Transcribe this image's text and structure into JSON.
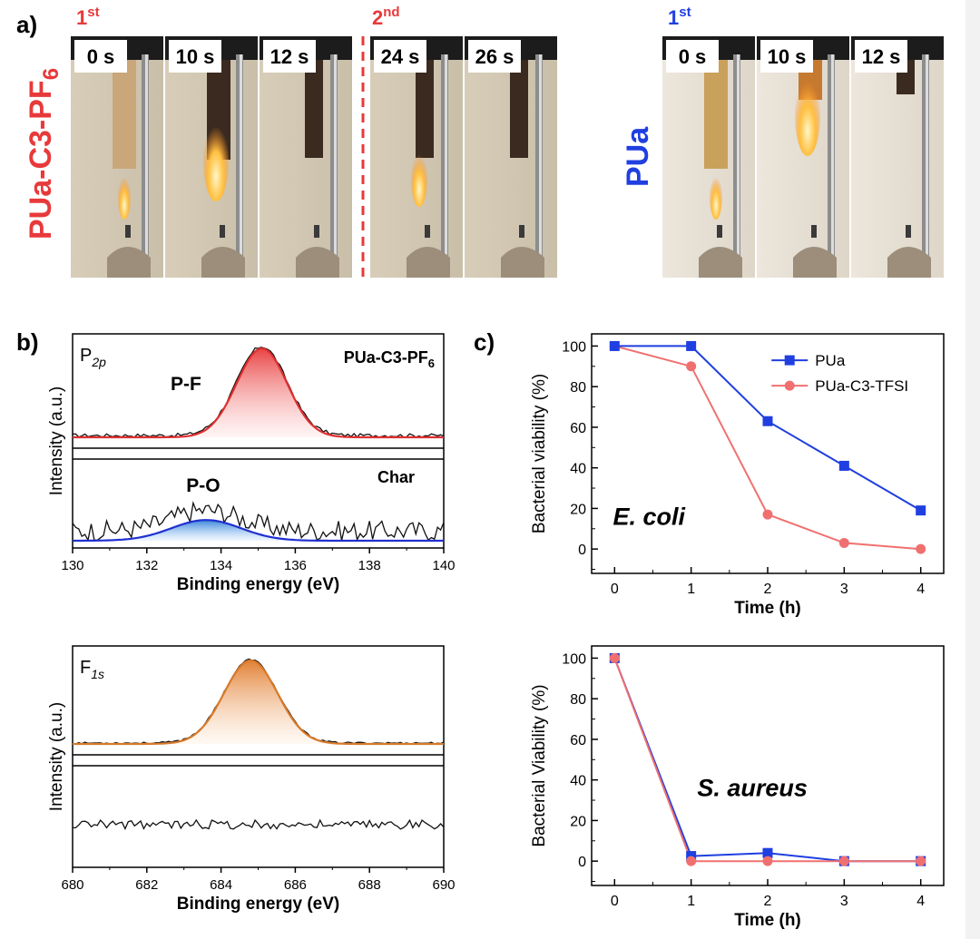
{
  "panel_labels": {
    "a": "a)",
    "b": "b)",
    "c": "c)"
  },
  "panel_a": {
    "sample_left": "PUa-C3-PF",
    "sample_left_sub": "6",
    "sample_right": "PUa",
    "ignition_1st": "1",
    "ignition_1st_sup": "st",
    "ignition_2nd": "2",
    "ignition_2nd_sup": "nd",
    "ignition_right": "1",
    "ignition_right_sup": "st",
    "left_frames": [
      "0 s",
      "10 s",
      "12 s",
      "24 s",
      "26 s"
    ],
    "right_frames": [
      "0 s",
      "10 s",
      "12 s"
    ],
    "colors": {
      "red": "#e8393a",
      "blue": "#1f3fe0"
    }
  },
  "chart_data": [
    {
      "type": "line",
      "id": "xps_p2p",
      "title": "P2p",
      "xlabel": "Binding energy (eV)",
      "ylabel": "Intensity (a.u.)",
      "xlim": [
        130,
        140
      ],
      "xticks": [
        "130",
        "132",
        "134",
        "136",
        "138",
        "140"
      ],
      "subpanels": [
        {
          "label": "PUa-C3-PF6",
          "peak": "P-F",
          "peak_center": 135.1,
          "peak_fwhm": 1.6,
          "fill": "#e83a3a"
        },
        {
          "label": "Char",
          "peak": "P-O",
          "peak_center": 133.6,
          "peak_fwhm": 2.2,
          "fill": "#3f8fe0"
        }
      ],
      "text": {
        "title_main": "P",
        "title_sub": "2p",
        "top_label": "PUa-C3-PF",
        "top_label_sub": "6",
        "top_peak": "P-F",
        "bottom_label": "Char",
        "bottom_peak": "P-O"
      }
    },
    {
      "type": "line",
      "id": "xps_f1s",
      "title": "F1s",
      "xlabel": "Binding energy (eV)",
      "ylabel": "Intensity (a.u.)",
      "xlim": [
        680,
        690
      ],
      "xticks": [
        "680",
        "682",
        "684",
        "686",
        "688",
        "690"
      ],
      "subpanels": [
        {
          "peak_center": 684.8,
          "peak_fwhm": 1.7,
          "fill": "#e58a3a"
        },
        {
          "peak_center": null
        }
      ],
      "text": {
        "title_main": "F",
        "title_sub": "1s"
      }
    },
    {
      "type": "line",
      "id": "ecoli",
      "xlabel": "Time (h)",
      "ylabel": "Bacterial viability (%)",
      "annotation": "E. coli",
      "x": [
        0,
        1,
        2,
        3,
        4
      ],
      "xlim": [
        -0.3,
        4.3
      ],
      "ylim": [
        -12,
        106
      ],
      "yticks": [
        0,
        20,
        40,
        60,
        80,
        100
      ],
      "series": [
        {
          "name": "PUa",
          "values": [
            100,
            100,
            63,
            41,
            19
          ],
          "color": "#1f3fe0",
          "marker": "square"
        },
        {
          "name": "PUa-C3-TFSI",
          "values": [
            100,
            90,
            17,
            3,
            0
          ],
          "color": "#f07070",
          "marker": "circle"
        }
      ],
      "legend": "top-right"
    },
    {
      "type": "line",
      "id": "saureus",
      "xlabel": "Time (h)",
      "ylabel": "Bacterial Viability (%)",
      "annotation": "S. aureus",
      "x": [
        0,
        1,
        2,
        3,
        4
      ],
      "xlim": [
        -0.3,
        4.3
      ],
      "ylim": [
        -12,
        106
      ],
      "yticks": [
        0,
        20,
        40,
        60,
        80,
        100
      ],
      "series": [
        {
          "name": "PUa",
          "values": [
            100,
            2.5,
            4,
            0,
            0
          ],
          "color": "#1f3fe0",
          "marker": "square"
        },
        {
          "name": "PUa-C3-TFSI",
          "values": [
            100,
            0,
            0,
            0,
            0
          ],
          "color": "#f07070",
          "marker": "circle"
        }
      ]
    }
  ]
}
